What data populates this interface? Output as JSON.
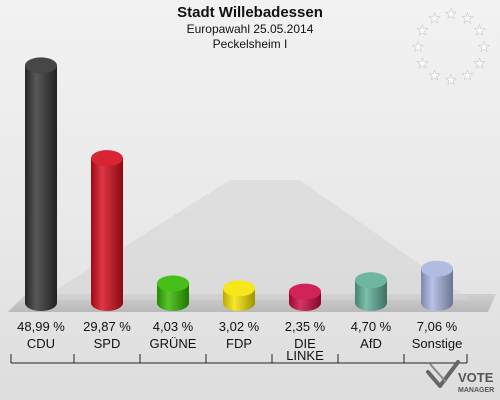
{
  "header": {
    "title": "Stadt Willebadessen",
    "subtitle": "Europawahl 25.05.2014",
    "district": "Peckelsheim I"
  },
  "colors": {
    "CDU": "#333333",
    "SPD": "#d40c1c",
    "GRÜNE": "#33b800",
    "FDP": "#f5e300",
    "DIE LINKE": "#cc0a45",
    "AfD": "#5fae98",
    "Sonstige": "#a8b4e0"
  },
  "chart_data": {
    "type": "bar",
    "categories": [
      "CDU",
      "SPD",
      "GRÜNE",
      "FDP",
      "DIE LINKE",
      "AfD",
      "Sonstige"
    ],
    "category_lines": [
      [
        "CDU"
      ],
      [
        "SPD"
      ],
      [
        "GRÜNE"
      ],
      [
        "FDP"
      ],
      [
        "DIE",
        "LINKE"
      ],
      [
        "AfD"
      ],
      [
        "Sonstige"
      ]
    ],
    "values": [
      48.99,
      29.87,
      4.03,
      3.02,
      2.35,
      4.7,
      7.06
    ],
    "value_labels": [
      "48,99 %",
      "29,87 %",
      "4,03 %",
      "3,02 %",
      "2,35 %",
      "4,70 %",
      "7,06 %"
    ],
    "title": "Stadt Willebadessen",
    "subtitle": "Europawahl 25.05.2014",
    "xlabel": "",
    "ylabel": "",
    "ylim": [
      0,
      50
    ]
  },
  "logo": {
    "line1": "VOTE",
    "line2": "MANAGER",
    "icon": "vote-manager-check-icon"
  },
  "eu_stars": {
    "icon": "eu-star-ring-icon",
    "count": 12
  }
}
